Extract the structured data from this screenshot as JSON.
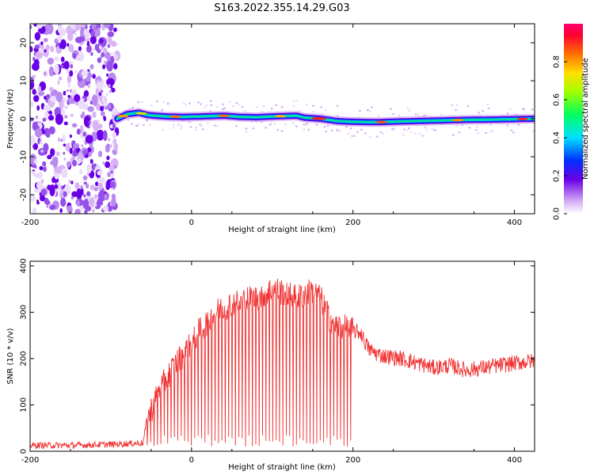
{
  "title": "S163.2022.355.14.29.G03",
  "chart_data": [
    {
      "type": "heatmap",
      "xlabel": "Height of straight line (km)",
      "ylabel": "Frequency (Hz)",
      "xlim": [
        -200,
        425
      ],
      "ylim": [
        -25,
        25
      ],
      "x_ticks": [
        -200,
        0,
        200,
        400
      ],
      "y_ticks": [
        -20,
        -10,
        0,
        10,
        20
      ],
      "colorbar": {
        "label": "Normalized spectral amplitude",
        "range": [
          0,
          1
        ],
        "ticks": [
          0.0,
          0.2,
          0.4,
          0.6,
          0.8
        ]
      },
      "noise_region_x": [
        -200,
        -92
      ],
      "signal_track": {
        "x": [
          -92,
          -80,
          -65,
          -55,
          -45,
          -30,
          -10,
          10,
          40,
          60,
          80,
          100,
          130,
          140,
          160,
          180,
          200,
          230,
          260,
          300,
          340,
          380,
          425
        ],
        "frequency": [
          0.0,
          1.2,
          1.6,
          1.0,
          0.8,
          0.6,
          0.5,
          0.6,
          0.8,
          0.5,
          0.4,
          0.6,
          0.8,
          0.3,
          0.0,
          -0.6,
          -0.8,
          -0.9,
          -0.7,
          -0.5,
          -0.3,
          -0.2,
          0.0
        ]
      }
    },
    {
      "type": "line",
      "xlabel": "Height of straight line (km)",
      "ylabel": "SNR (10 * v/v)",
      "xlim": [
        -200,
        425
      ],
      "ylim": [
        0,
        410
      ],
      "x_ticks": [
        -200,
        0,
        200,
        400
      ],
      "y_ticks": [
        0,
        100,
        200,
        300,
        400
      ],
      "color": "#f03232",
      "series": [
        {
          "x": [
            -200,
            -150,
            -100,
            -60,
            -55,
            -50,
            -40,
            -30,
            -20,
            -10,
            0,
            10,
            20,
            30,
            40,
            50,
            60,
            70,
            80,
            90,
            100,
            110,
            120,
            130,
            140,
            150,
            160,
            170,
            180,
            190,
            200,
            210,
            215,
            220,
            230,
            240,
            260,
            280,
            300,
            320,
            340,
            360,
            380,
            400,
            425
          ],
          "values": [
            10,
            10,
            12,
            15,
            70,
            90,
            130,
            160,
            190,
            210,
            230,
            260,
            280,
            300,
            310,
            320,
            320,
            330,
            330,
            340,
            350,
            345,
            340,
            330,
            340,
            345,
            330,
            290,
            270,
            265,
            260,
            255,
            235,
            220,
            210,
            205,
            200,
            190,
            180,
            185,
            175,
            180,
            185,
            190,
            195
          ]
        }
      ]
    }
  ]
}
